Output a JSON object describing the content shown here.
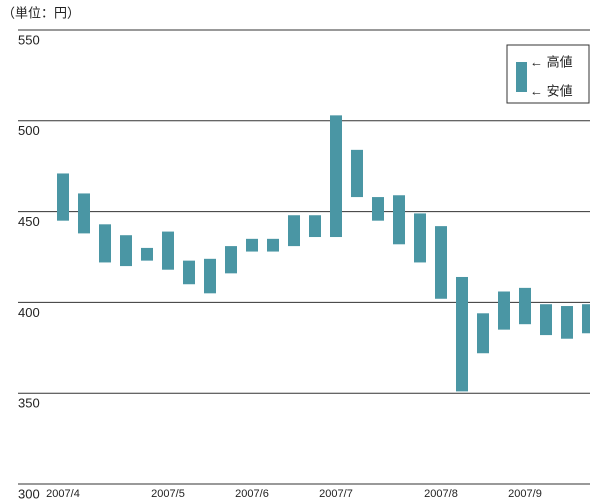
{
  "chart_data": {
    "type": "range_bar",
    "unit_label": "（単位：円）",
    "categories": [
      "2007/4",
      null,
      null,
      null,
      null,
      "2007/5",
      null,
      null,
      null,
      "2007/6",
      null,
      null,
      null,
      "2007/7",
      null,
      null,
      null,
      null,
      "2007/8",
      null,
      null,
      null,
      "2007/9",
      null,
      null,
      null
    ],
    "high": [
      471,
      460,
      443,
      437,
      430,
      439,
      423,
      424,
      431,
      435,
      435,
      448,
      448,
      503,
      484,
      458,
      459,
      449,
      442,
      414,
      394,
      406,
      408,
      399,
      398,
      399
    ],
    "low": [
      445,
      438,
      422,
      420,
      423,
      418,
      410,
      405,
      416,
      428,
      428,
      431,
      436,
      436,
      458,
      445,
      432,
      422,
      402,
      351,
      372,
      385,
      388,
      382,
      380,
      383
    ],
    "color": "#4a96a4",
    "legend": {
      "high_label": "← 高値",
      "low_label": "← 安値"
    },
    "ylim": [
      300,
      550
    ],
    "yticks": [
      300,
      350,
      400,
      450,
      500,
      550
    ],
    "grid": true
  }
}
